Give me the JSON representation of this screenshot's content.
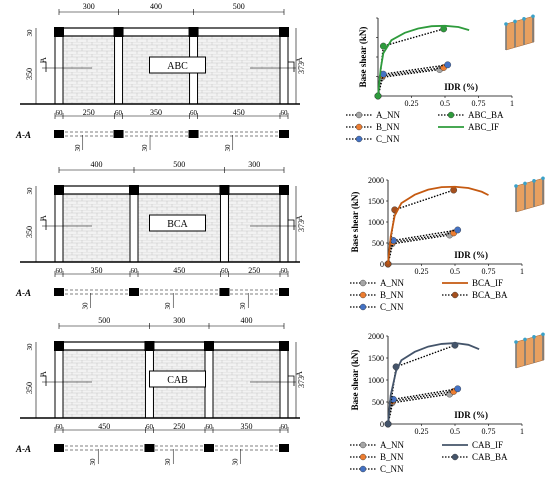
{
  "frames": [
    {
      "label": "ABC",
      "top_spans": [
        "300",
        "400",
        "500"
      ],
      "bottom_spans": [
        "250",
        "350",
        "450"
      ],
      "col_label": "60",
      "left_dim": "350",
      "right_dim": "373",
      "beam_dim": "30",
      "section_mark": "A",
      "section_label": "A-A",
      "section_dim": "30"
    },
    {
      "label": "BCA",
      "top_spans": [
        "400",
        "500",
        "300"
      ],
      "bottom_spans": [
        "350",
        "450",
        "250"
      ],
      "col_label": "60",
      "left_dim": "350",
      "right_dim": "373",
      "beam_dim": "30",
      "section_mark": "A",
      "section_label": "A-A",
      "section_dim": "30"
    },
    {
      "label": "CAB",
      "top_spans": [
        "500",
        "300",
        "400"
      ],
      "bottom_spans": [
        "450",
        "250",
        "350"
      ],
      "col_label": "60",
      "left_dim": "350",
      "right_dim": "373",
      "beam_dim": "30",
      "section_mark": "A",
      "section_label": "A-A",
      "section_dim": "30"
    }
  ],
  "chart_data": [
    {
      "type": "line",
      "ylabel": "Base shear (kN)",
      "xlabel": "IDR (%)",
      "xlim": [
        0,
        1
      ],
      "ylim": [
        0,
        2000
      ],
      "xticks": [
        "0",
        "0.25",
        "0.5",
        "0.75",
        "1"
      ],
      "yticks": [
        "0",
        "500",
        "1000",
        "1500",
        "2000"
      ],
      "show_yticks": false,
      "series": [
        {
          "name": "A_NN",
          "style": "nn",
          "color": "#a6a6a6",
          "x": [
            0,
            0.03,
            0.46
          ],
          "y": [
            0,
            480,
            680
          ]
        },
        {
          "name": "B_NN",
          "style": "nn",
          "color": "#ed7d31",
          "x": [
            0,
            0.035,
            0.49
          ],
          "y": [
            0,
            520,
            730
          ]
        },
        {
          "name": "C_NN",
          "style": "nn",
          "color": "#4472c4",
          "x": [
            0,
            0.04,
            0.52
          ],
          "y": [
            0,
            560,
            800
          ]
        },
        {
          "name": "ABC_BA",
          "style": "ba",
          "color": "#2e9b3c",
          "x": [
            0,
            0.04,
            0.49
          ],
          "y": [
            0,
            1280,
            1720
          ]
        },
        {
          "name": "ABC_IF",
          "style": "if",
          "color": "#2e9b3c",
          "x": [
            0,
            0.02,
            0.04,
            0.1,
            0.2,
            0.3,
            0.4,
            0.5,
            0.6,
            0.68
          ],
          "y": [
            0,
            700,
            1100,
            1430,
            1620,
            1730,
            1790,
            1800,
            1770,
            1690
          ]
        }
      ],
      "legend": [
        [
          "A_NN",
          "ABC_BA"
        ],
        [
          "B_NN",
          "ABC_IF"
        ],
        [
          "C_NN",
          ""
        ]
      ]
    },
    {
      "type": "line",
      "ylabel": "Base shear (kN)",
      "xlabel": "IDR (%)",
      "xlim": [
        0,
        1
      ],
      "ylim": [
        0,
        2000
      ],
      "xticks": [
        "0",
        "0.25",
        "0.5",
        "0.75",
        "1"
      ],
      "yticks": [
        "0",
        "500",
        "1000",
        "1500",
        "2000"
      ],
      "show_yticks": true,
      "series": [
        {
          "name": "A_NN",
          "style": "nn",
          "color": "#a6a6a6",
          "x": [
            0,
            0.03,
            0.46
          ],
          "y": [
            0,
            480,
            690
          ]
        },
        {
          "name": "B_NN",
          "style": "nn",
          "color": "#ed7d31",
          "x": [
            0,
            0.035,
            0.49
          ],
          "y": [
            0,
            520,
            740
          ]
        },
        {
          "name": "C_NN",
          "style": "nn",
          "color": "#4472c4",
          "x": [
            0,
            0.04,
            0.52
          ],
          "y": [
            0,
            560,
            810
          ]
        },
        {
          "name": "BCA_BA",
          "style": "ba",
          "color": "#a5501e",
          "x": [
            0,
            0.05,
            0.49
          ],
          "y": [
            0,
            1290,
            1760
          ]
        },
        {
          "name": "BCA_IF",
          "style": "if",
          "color": "#c55a11",
          "x": [
            0,
            0.02,
            0.05,
            0.1,
            0.2,
            0.3,
            0.4,
            0.5,
            0.6,
            0.7,
            0.75
          ],
          "y": [
            0,
            650,
            1150,
            1450,
            1650,
            1770,
            1830,
            1840,
            1810,
            1720,
            1640
          ]
        }
      ],
      "legend": [
        [
          "A_NN",
          "BCA_IF"
        ],
        [
          "B_NN",
          "BCA_BA"
        ],
        [
          "C_NN",
          ""
        ]
      ]
    },
    {
      "type": "line",
      "ylabel": "Base shear (kN)",
      "xlabel": "IDR (%)",
      "xlim": [
        0,
        1
      ],
      "ylim": [
        0,
        2000
      ],
      "xticks": [
        "0",
        "0.25",
        "0.5",
        "0.75",
        "1"
      ],
      "yticks": [
        "0",
        "500",
        "1000",
        "1500",
        "2000"
      ],
      "show_yticks": true,
      "series": [
        {
          "name": "A_NN",
          "style": "nn",
          "color": "#a6a6a6",
          "x": [
            0,
            0.03,
            0.46
          ],
          "y": [
            0,
            480,
            680
          ]
        },
        {
          "name": "B_NN",
          "style": "nn",
          "color": "#ed7d31",
          "x": [
            0,
            0.035,
            0.49
          ],
          "y": [
            0,
            520,
            740
          ]
        },
        {
          "name": "C_NN",
          "style": "nn",
          "color": "#4472c4",
          "x": [
            0,
            0.04,
            0.52
          ],
          "y": [
            0,
            560,
            800
          ]
        },
        {
          "name": "CAB_BA",
          "style": "ba",
          "color": "#44546a",
          "x": [
            0,
            0.06,
            0.5
          ],
          "y": [
            0,
            1300,
            1790
          ]
        },
        {
          "name": "CAB_IF",
          "style": "if",
          "color": "#44546a",
          "x": [
            0,
            0.02,
            0.06,
            0.1,
            0.2,
            0.3,
            0.4,
            0.5,
            0.6,
            0.68
          ],
          "y": [
            0,
            650,
            1200,
            1450,
            1640,
            1760,
            1820,
            1840,
            1800,
            1700
          ]
        }
      ],
      "legend": [
        [
          "A_NN",
          "CAB_IF"
        ],
        [
          "B_NN",
          "CAB_BA"
        ],
        [
          "C_NN",
          ""
        ]
      ]
    }
  ]
}
